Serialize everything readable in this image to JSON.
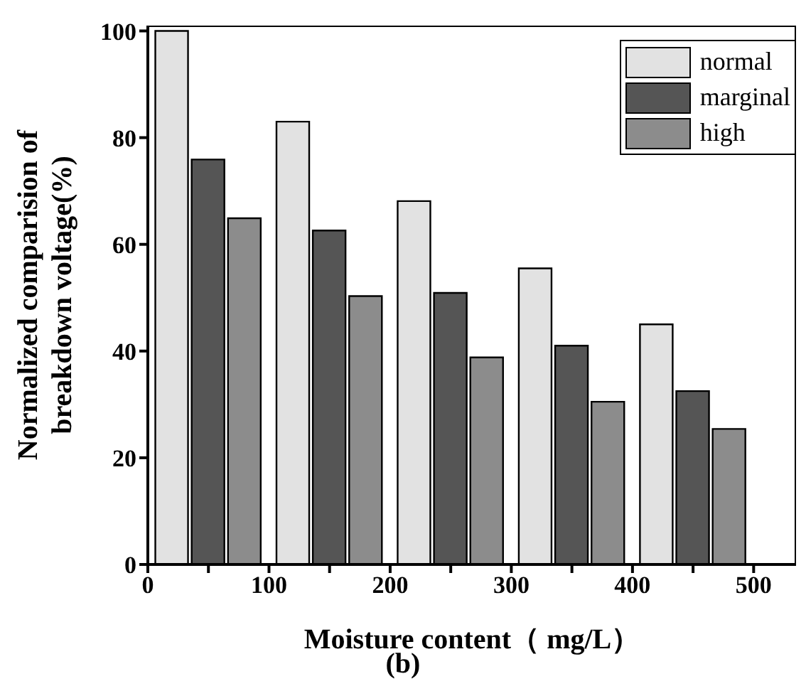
{
  "chart_data": {
    "type": "bar",
    "xlabel": "Moisture content（ mg/L）",
    "ylabel": "Normalized comparision of breakdown voltage(%)",
    "annotations": [
      "(b)"
    ],
    "xlim": [
      0,
      535
    ],
    "xticks": [
      0,
      {
        "value": 50,
        "label": null
      },
      100,
      {
        "value": 150,
        "label": null
      },
      200,
      {
        "value": 250,
        "label": null
      },
      300,
      {
        "value": 350,
        "label": null
      },
      400,
      {
        "value": 450,
        "label": null
      },
      500
    ],
    "ylim": [
      0,
      101
    ],
    "yticks": [
      0,
      20,
      40,
      60,
      80,
      100
    ],
    "legend": "top right",
    "series": [
      {
        "name": "normal",
        "color": "#e2e2e2",
        "x": [
          20,
          120,
          220,
          320,
          420
        ],
        "values": [
          100,
          83,
          68.1,
          55.5,
          45
        ]
      },
      {
        "name": "marginal",
        "color": "#555555",
        "x": [
          50,
          150,
          250,
          350,
          450
        ],
        "values": [
          75.9,
          62.6,
          50.9,
          41,
          32.5
        ]
      },
      {
        "name": "high",
        "color": "#8c8c8c",
        "x": [
          80,
          180,
          280,
          380,
          480
        ],
        "values": [
          64.9,
          50.3,
          38.8,
          30.5,
          25.4
        ]
      }
    ]
  }
}
